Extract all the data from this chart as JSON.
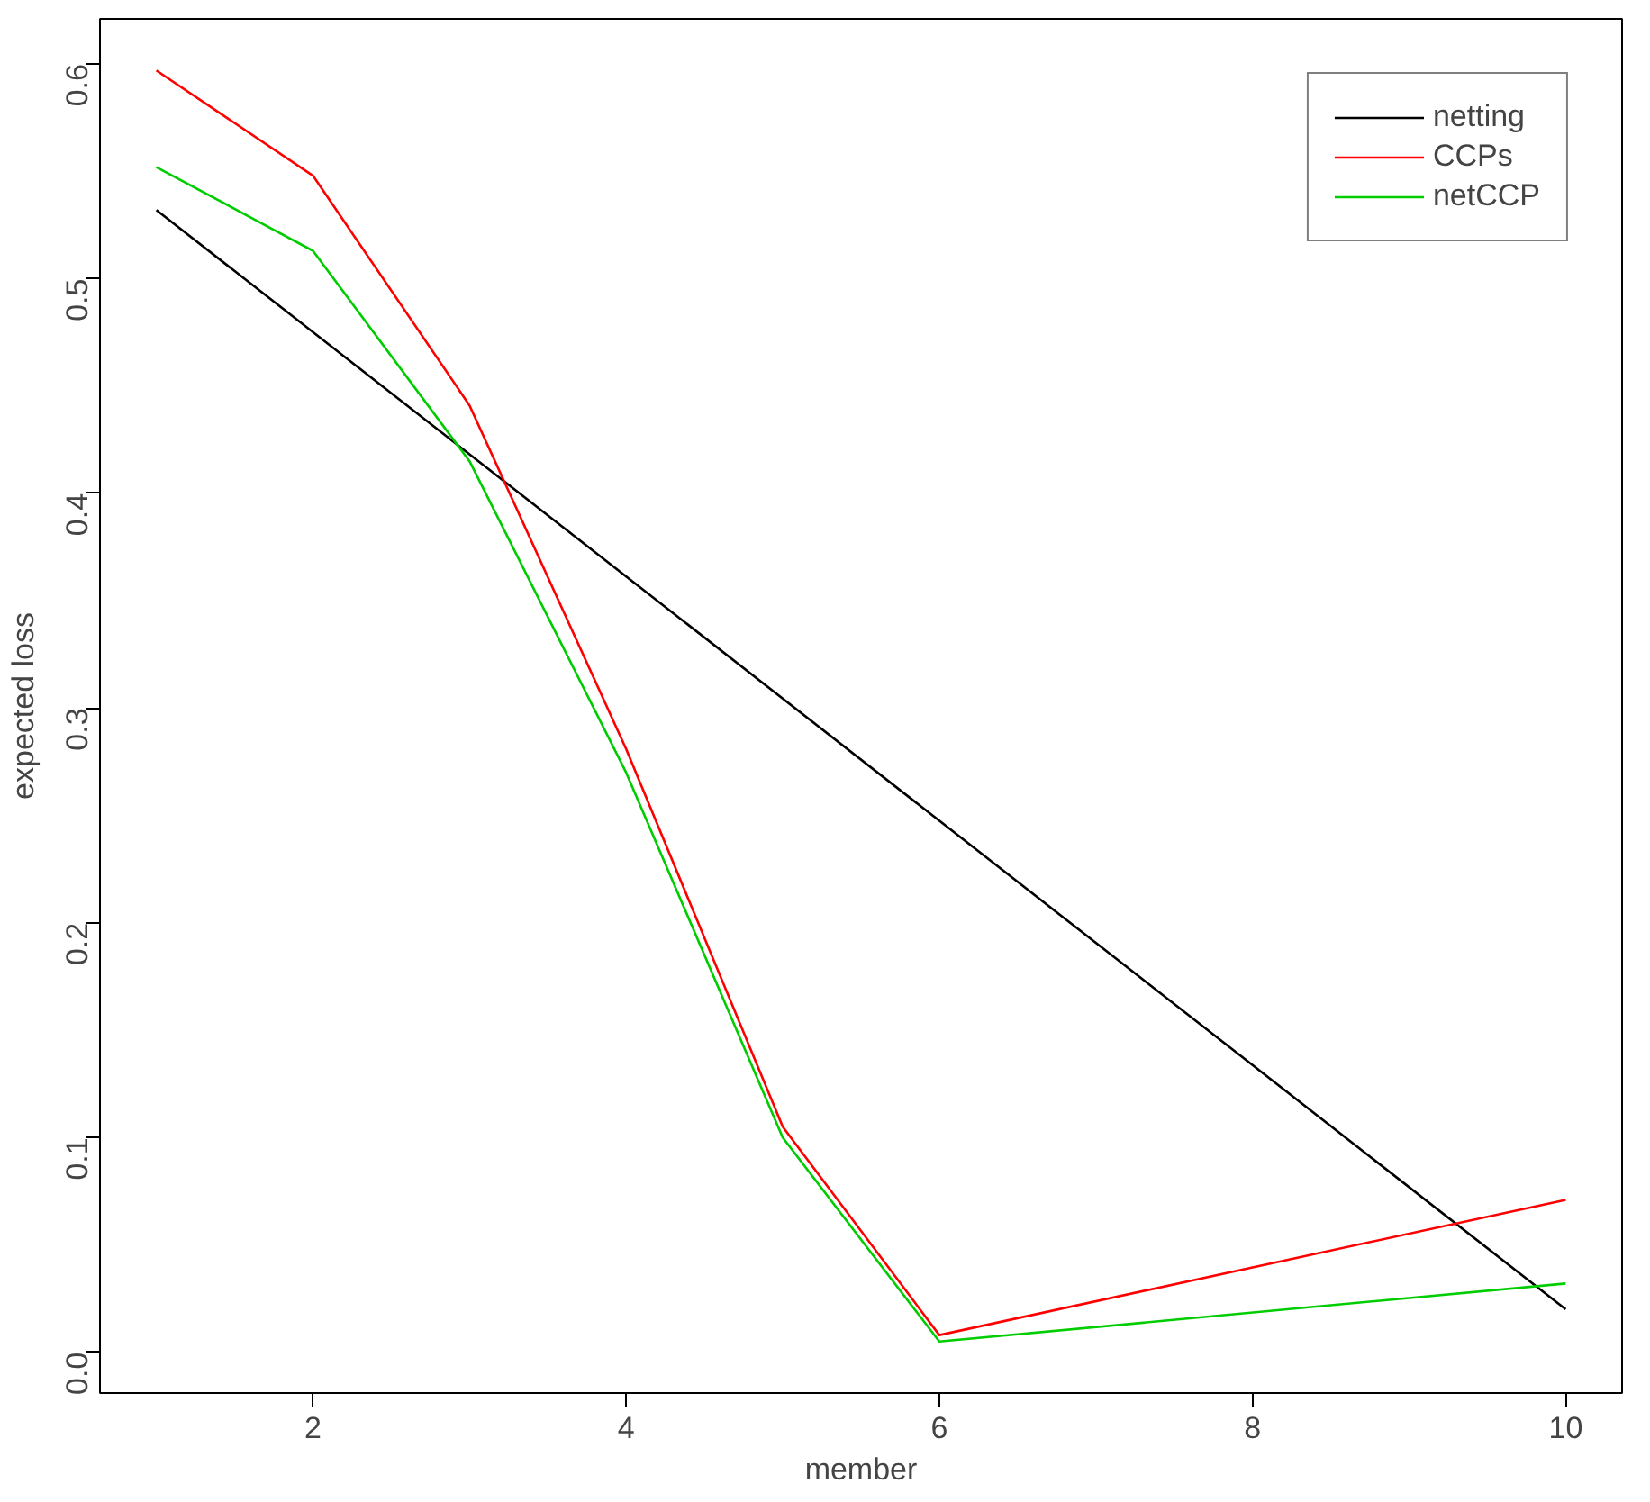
{
  "chart_data": {
    "type": "line",
    "xlabel": "member",
    "ylabel": "expected loss",
    "xlim": [
      0.64,
      10.36
    ],
    "ylim": [
      -0.019,
      0.621
    ],
    "xticks": [
      2,
      4,
      6,
      8,
      10
    ],
    "yticks": [
      {
        "value": 0,
        "label": "0.0"
      },
      {
        "value": 0.1,
        "label": "0.1"
      },
      {
        "value": 0.2,
        "label": "0.2"
      },
      {
        "value": 0.3,
        "label": "0.3"
      },
      {
        "value": 0.4,
        "label": "0.4"
      },
      {
        "value": 0.5,
        "label": "0.5"
      },
      {
        "value": 0.6,
        "label": "0.6"
      }
    ],
    "grid": false,
    "legend": "top right",
    "marker": "none",
    "line_style": "solid",
    "series": [
      {
        "name": "netting",
        "color": "#000000",
        "x": [
          1,
          10
        ],
        "values": [
          0.532,
          0.02
        ]
      },
      {
        "name": "CCPs",
        "color": "#ff0000",
        "x": [
          1,
          2,
          3,
          4,
          5,
          6,
          10
        ],
        "values": [
          0.597,
          0.548,
          0.441,
          0.281,
          0.105,
          0.008,
          0.071
        ]
      },
      {
        "name": "netCCP",
        "color": "#00cd00",
        "x": [
          1,
          2,
          3,
          4,
          5,
          6,
          10
        ],
        "values": [
          0.552,
          0.513,
          0.415,
          0.27,
          0.1,
          0.005,
          0.032
        ]
      }
    ]
  }
}
